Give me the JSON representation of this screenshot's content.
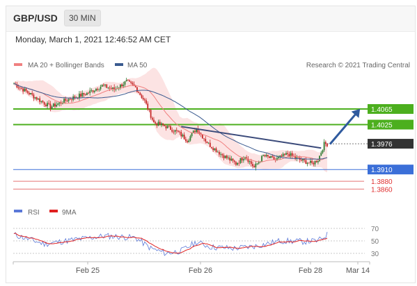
{
  "header": {
    "pair": "GBP/USD",
    "timeframe": "30 MIN"
  },
  "date_text": "Monday, March 1, 2021 12:46:52 AM CET",
  "legend": {
    "ma20": {
      "label": "MA 20 + Bollinger Bands",
      "color": "#f08080"
    },
    "ma50": {
      "label": "MA 50",
      "color": "#3a5a8f"
    },
    "credit": "Research © 2021 Trading Central"
  },
  "rsi_legend": {
    "rsi": {
      "label": "RSI",
      "color": "#5a78d8"
    },
    "ma9": {
      "label": "9MA",
      "color": "#e02020"
    }
  },
  "colors": {
    "up": "#2e7d32",
    "down": "#c62828",
    "green_level": "#4caf1e",
    "blue_level": "#3b6fd8",
    "red_level": "#e57373",
    "arrow": "#2f5a9e"
  },
  "chart_data": [
    {
      "type": "candlestick",
      "ylim": [
        1.3825,
        1.4145
      ],
      "x_ticks": [
        "Feb 25",
        "Feb 26",
        "Feb 28",
        "Mar 14"
      ],
      "levels": [
        {
          "value": 1.4065,
          "label": "1.4065",
          "style": "green-box"
        },
        {
          "value": 1.4025,
          "label": "1.4025",
          "style": "green-box"
        },
        {
          "value": 1.3976,
          "label": "1.3976",
          "style": "dark-box"
        },
        {
          "value": 1.391,
          "label": "1.3910",
          "style": "blue-box"
        },
        {
          "value": 1.388,
          "label": "1.3880",
          "style": "red-text"
        },
        {
          "value": 1.386,
          "label": "1.3860",
          "style": "red-text"
        }
      ],
      "key_points": [
        {
          "t": 0,
          "price": 1.413
        },
        {
          "t": 12,
          "price": 1.41
        },
        {
          "t": 24,
          "price": 1.407
        },
        {
          "t": 36,
          "price": 1.409
        },
        {
          "t": 48,
          "price": 1.4105
        },
        {
          "t": 58,
          "price": 1.4125
        },
        {
          "t": 66,
          "price": 1.4115
        },
        {
          "t": 74,
          "price": 1.4135
        },
        {
          "t": 80,
          "price": 1.412
        },
        {
          "t": 86,
          "price": 1.4085
        },
        {
          "t": 92,
          "price": 1.403
        },
        {
          "t": 100,
          "price": 1.402
        },
        {
          "t": 108,
          "price": 1.4005
        },
        {
          "t": 114,
          "price": 1.3985
        },
        {
          "t": 120,
          "price": 1.4015
        },
        {
          "t": 128,
          "price": 1.3975
        },
        {
          "t": 136,
          "price": 1.395
        },
        {
          "t": 146,
          "price": 1.3925
        },
        {
          "t": 152,
          "price": 1.3945
        },
        {
          "t": 158,
          "price": 1.3915
        },
        {
          "t": 164,
          "price": 1.3945
        },
        {
          "t": 172,
          "price": 1.3935
        },
        {
          "t": 180,
          "price": 1.395
        },
        {
          "t": 188,
          "price": 1.3935
        },
        {
          "t": 196,
          "price": 1.3925
        },
        {
          "t": 200,
          "price": 1.3935
        },
        {
          "t": 204,
          "price": 1.3975
        }
      ],
      "trend_line": [
        {
          "t": 110,
          "price": 1.402
        },
        {
          "t": 202,
          "price": 1.3965
        }
      ],
      "arrow": [
        {
          "t": 205,
          "price": 1.3975
        },
        {
          "t": 224,
          "price": 1.4065
        }
      ]
    },
    {
      "type": "line",
      "title": "RSI",
      "ylim": [
        20,
        80
      ],
      "y_ticks": [
        70,
        50,
        30
      ],
      "rsi_key_points": [
        {
          "t": 0,
          "v": 60
        },
        {
          "t": 20,
          "v": 45
        },
        {
          "t": 40,
          "v": 52
        },
        {
          "t": 60,
          "v": 58
        },
        {
          "t": 80,
          "v": 55
        },
        {
          "t": 90,
          "v": 38
        },
        {
          "t": 100,
          "v": 30
        },
        {
          "t": 110,
          "v": 34
        },
        {
          "t": 120,
          "v": 48
        },
        {
          "t": 130,
          "v": 40
        },
        {
          "t": 145,
          "v": 38
        },
        {
          "t": 160,
          "v": 42
        },
        {
          "t": 175,
          "v": 50
        },
        {
          "t": 190,
          "v": 49
        },
        {
          "t": 200,
          "v": 50
        },
        {
          "t": 206,
          "v": 60
        }
      ]
    }
  ]
}
